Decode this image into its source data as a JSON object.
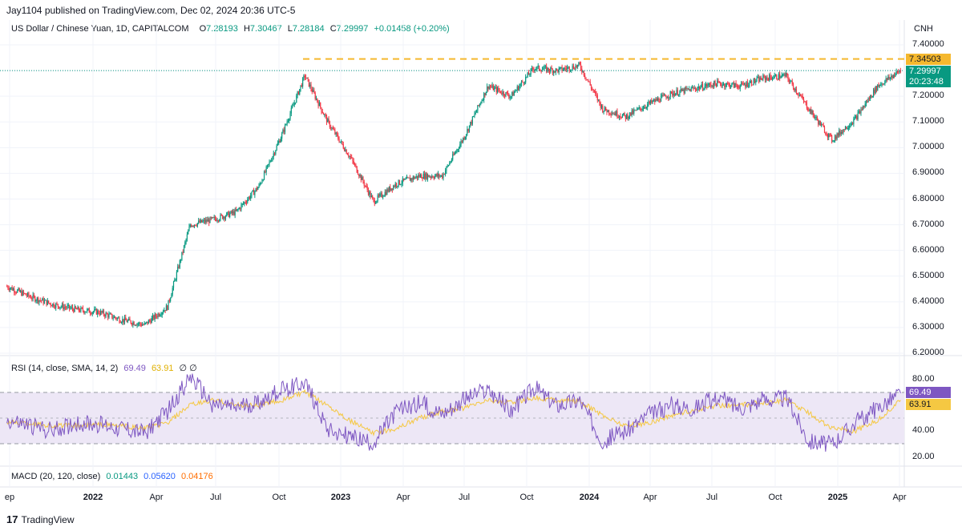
{
  "header": {
    "publisher": "Jay1104 published on TradingView.com, Dec 02, 2024 20:36 UTC-5"
  },
  "legend": {
    "symbol": "US Dollar / Chinese Yuan, 1D, CAPITALCOM",
    "o_label": "O",
    "o": "7.28193",
    "h_label": "H",
    "h": "7.30467",
    "l_label": "L",
    "l": "7.28184",
    "c_label": "C",
    "c": "7.29997",
    "change": "+0.01458 (+0.20%)"
  },
  "currency": "CNH",
  "price_axis": [
    "7.40000",
    "7.30000",
    "7.20000",
    "7.10000",
    "7.00000",
    "6.90000",
    "6.80000",
    "6.70000",
    "6.60000",
    "6.50000",
    "6.40000",
    "6.30000",
    "6.20000"
  ],
  "badges": {
    "resistance": "7.34503",
    "last": "7.29997",
    "countdown": "20:23:48",
    "rsi": "69.49",
    "rsi_sma": "63.91"
  },
  "rsi": {
    "label": "RSI (14, close, SMA, 14, 2)",
    "value": "69.49",
    "sma": "63.91",
    "icons": "∅ ∅",
    "axis": [
      "80.00",
      "40.00",
      "20.00"
    ]
  },
  "macd": {
    "label": "MACD (20, 120, close)",
    "v1": "0.01443",
    "v2": "0.05620",
    "v3": "0.04176"
  },
  "x_axis": [
    "ep",
    "2022",
    "Apr",
    "Jul",
    "Oct",
    "2023",
    "Apr",
    "Jul",
    "Oct",
    "2024",
    "Apr",
    "Jul",
    "Oct",
    "2025",
    "Apr"
  ],
  "footer": {
    "brand": "TradingView",
    "mark": "17"
  },
  "colors": {
    "up": "#089981",
    "down": "#f23645",
    "resistance": "#f5b82e",
    "rsi": "#7e57c2",
    "rsi_sma": "#f5c842",
    "band": "#ede7f6"
  },
  "chart_data": [
    {
      "type": "candlestick",
      "title": "US Dollar / Chinese Yuan, 1D, CAPITALCOM",
      "ylim": [
        6.2,
        7.45
      ],
      "y_ticks": [
        6.2,
        6.3,
        6.4,
        6.5,
        6.6,
        6.7,
        6.8,
        6.9,
        7.0,
        7.1,
        7.2,
        7.3,
        7.4
      ],
      "x": [
        "2021-09",
        "2021-10",
        "2021-11",
        "2021-12",
        "2022-01",
        "2022-02",
        "2022-03",
        "2022-04",
        "2022-05",
        "2022-06",
        "2022-07",
        "2022-08",
        "2022-09",
        "2022-10",
        "2022-11",
        "2022-12",
        "2023-01",
        "2023-02",
        "2023-03",
        "2023-04",
        "2023-05",
        "2023-06",
        "2023-07",
        "2023-08",
        "2023-09",
        "2023-10",
        "2023-11",
        "2023-12",
        "2024-01",
        "2024-02",
        "2024-03",
        "2024-04",
        "2024-05",
        "2024-06",
        "2024-07",
        "2024-08",
        "2024-09",
        "2024-10",
        "2024-11",
        "2024-12"
      ],
      "close": [
        6.46,
        6.42,
        6.39,
        6.37,
        6.36,
        6.33,
        6.31,
        6.38,
        6.7,
        6.72,
        6.75,
        6.85,
        7.05,
        7.28,
        7.1,
        6.96,
        6.79,
        6.86,
        6.89,
        6.89,
        7.05,
        7.24,
        7.2,
        7.31,
        7.3,
        7.32,
        7.15,
        7.12,
        7.17,
        7.21,
        7.23,
        7.25,
        7.24,
        7.27,
        7.28,
        7.15,
        7.03,
        7.11,
        7.24,
        7.3
      ],
      "last": 7.29997,
      "resistance": 7.34503
    },
    {
      "type": "line",
      "title": "RSI (14, close, SMA, 14, 2)",
      "ylim": [
        15,
        90
      ],
      "bands": [
        30,
        70
      ],
      "series": [
        {
          "name": "RSI",
          "values": [
            48,
            44,
            40,
            46,
            45,
            42,
            38,
            55,
            82,
            60,
            58,
            62,
            72,
            78,
            42,
            35,
            30,
            55,
            62,
            54,
            65,
            72,
            55,
            74,
            60,
            64,
            32,
            40,
            52,
            60,
            58,
            66,
            58,
            64,
            66,
            32,
            30,
            46,
            58,
            69.49
          ]
        },
        {
          "name": "SMA",
          "values": [
            47,
            46,
            44,
            44,
            45,
            44,
            42,
            46,
            60,
            64,
            60,
            60,
            64,
            70,
            60,
            48,
            38,
            42,
            50,
            55,
            58,
            64,
            62,
            66,
            64,
            63,
            52,
            44,
            46,
            52,
            56,
            60,
            60,
            62,
            64,
            54,
            42,
            40,
            48,
            63.91
          ]
        }
      ]
    }
  ]
}
